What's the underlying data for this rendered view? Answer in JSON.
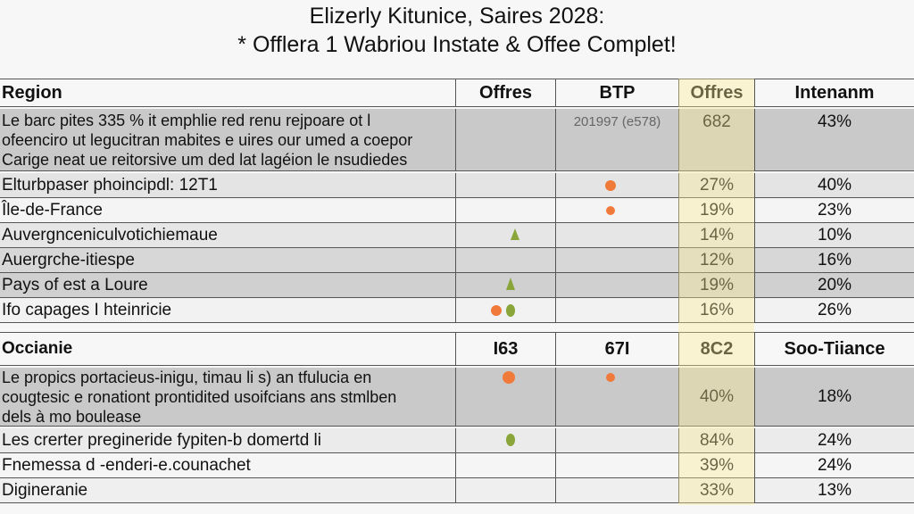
{
  "title": [
    "Elizerly Kitunice, Saires 2028:",
    "* Offlera 1 Wabriou Instate & Offee Complet!"
  ],
  "table": {
    "header": [
      "Region",
      "Offres",
      "BTP",
      "Offres",
      "Intenanm"
    ],
    "rows": [
      {
        "region": [
          "Le barc pites 335 % it emphlie red renu rejpoare ot l",
          "ofeencirо ut legucitran mabites e uires our umed a coepor",
          "Carige neat ue reitorsive um ded lat lagéion le nsudiedes"
        ],
        "values": [
          null,
          "201997 (e578)",
          "682",
          "43%"
        ]
      },
      {
        "region": [
          "Elturbpaser phoincipdl: 12T1"
        ],
        "values": [
          null,
          null,
          "27%",
          "40%"
        ]
      },
      {
        "region": [
          "Île-de-France"
        ],
        "values": [
          null,
          null,
          "19%",
          "23%"
        ]
      },
      {
        "region": [
          "Auvergnceniculvotichiemaue"
        ],
        "values": [
          null,
          null,
          "14%",
          "10%"
        ]
      },
      {
        "region": [
          "Auergrche-itiespe"
        ],
        "values": [
          null,
          null,
          "12%",
          "16%"
        ]
      },
      {
        "region": [
          "Pays of est a Loure"
        ],
        "values": [
          null,
          null,
          "19%",
          "20%"
        ]
      },
      {
        "region": [
          "Ifo capages I hteinricie"
        ],
        "values": [
          null,
          null,
          "16%",
          "26%"
        ]
      },
      {
        "region": [
          "Occianie"
        ],
        "values": [
          "I63",
          "67I",
          "8C2",
          "Soo-Tiiance"
        ]
      },
      {
        "region": [
          "Le propics portacieus-inigu, timau li s) an tfulucia en",
          "cougtesic e ronationt prontidited usoifcians ans stmlben",
          "dels à mo bouleasе"
        ],
        "values": [
          null,
          null,
          "40%",
          "18%"
        ]
      },
      {
        "region": [
          "Les crerter pregineride fypiten-b domertd li"
        ],
        "values": [
          null,
          null,
          "84%",
          "24%"
        ]
      },
      {
        "region": [
          "Fnemessa d -enderi-e.counachet"
        ],
        "values": [
          null,
          null,
          "39%",
          "24%"
        ]
      },
      {
        "region": [
          "Digineranie"
        ],
        "values": [
          null,
          null,
          "33%",
          "13%"
        ]
      }
    ]
  }
}
